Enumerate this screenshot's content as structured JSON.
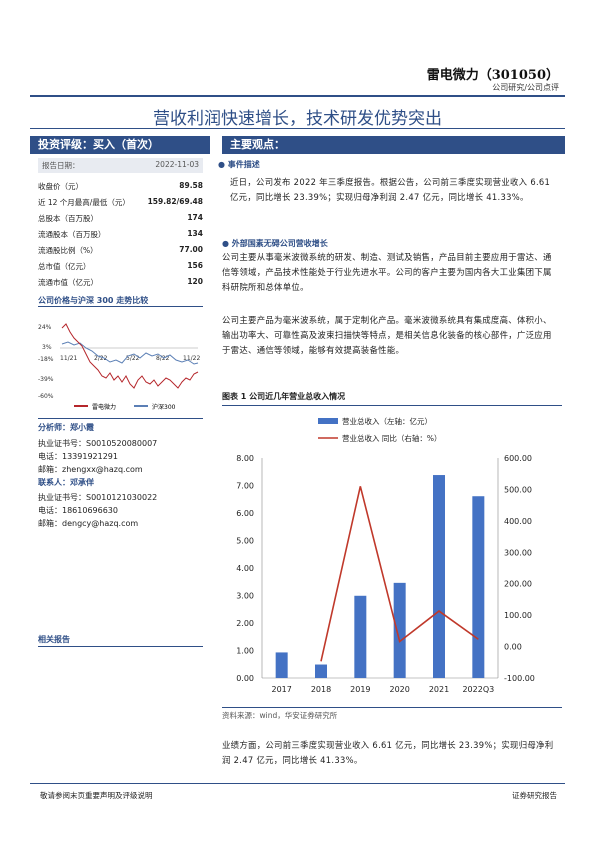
{
  "header": {
    "company": "雷电微力（301050）",
    "category": "公司研究/公司点评"
  },
  "title": "营收利润快速增长，技术研发优势突出",
  "left": {
    "rating_label": "投资评级：买入（首次）",
    "report_date_label": "报告日期：",
    "report_date": "2022-11-03",
    "stats": [
      {
        "label": "收盘价（元）",
        "value": "89.58"
      },
      {
        "label": "近 12 个月最高/最低（元）",
        "value": "159.82/69.48"
      },
      {
        "label": "总股本（百万股）",
        "value": "174"
      },
      {
        "label": "流通股本（百万股）",
        "value": "134"
      },
      {
        "label": "流通股比例（%）",
        "value": "77.00"
      },
      {
        "label": "总市值（亿元）",
        "value": "156"
      },
      {
        "label": "流通市值（亿元）",
        "value": "120"
      }
    ],
    "price_chart_title": "公司价格与沪深 300 走势比较",
    "price_chart": {
      "y_ticks": [
        "24%",
        "3%",
        "-18%",
        "-39%",
        "-60%"
      ],
      "x_ticks": [
        "11/21",
        "2/22",
        "5/22",
        "8/22",
        "11/22"
      ],
      "legend": [
        "雷电微力",
        "沪深300"
      ],
      "colors": [
        "#b5262b",
        "#5b7fb5"
      ]
    },
    "analyst_label": "分析师：",
    "analyst_name": "郑小霞",
    "analyst_cert": "执业证书号：S0010520080007",
    "analyst_phone": "电话：13391921291",
    "analyst_email": "邮箱：zhengxx@hazq.com",
    "contact_label": "联系人：",
    "contact_name": "邓承佯",
    "contact_cert": "执业证书号：S0010121030022",
    "contact_phone": "电话：18610696630",
    "contact_email": "邮箱：dengcy@hazq.com",
    "related": "相关报告"
  },
  "right": {
    "main_label": "主要观点：",
    "event_title": "事件描述",
    "event_text": "近日，公司发布 2022 年三季度报告。根据公告，公司前三季度实现营业收入 6.61 亿元，同比增长 23.39%；实现归母净利润 2.47 亿元，同比增长 41.33%。",
    "sec2_title": "外部国素无碍公司营收增长",
    "sec2_p1": "公司主要从事毫米波微系统的研发、制造、测试及销售，产品目前主要应用于雷达、通信等领域，产品技术性能处于行业先进水平。公司的客户主要为国内各大工业集团下属科研院所和总体单位。",
    "sec2_p2": "公司主要产品为毫米波系统，属于定制化产品。毫米波微系统具有集成度高、体积小、输出功率大、可靠性高及波束扫描快等特点，是相关信息化装备的核心部件，广泛应用于雷达、通信等领域，能够有效提高装备性能。",
    "fig_title": "图表 1 公司近几年营业总收入情况",
    "source": "资料来源：wind，华安证券研究所",
    "bottom_p": "业绩方面，公司前三季度实现营业收入 6.61 亿元，同比增长 23.39%；实现归母净利润 2.47 亿元，同比增长 41.33%。"
  },
  "footer": {
    "left": "敬请参阅末页重要声明及评级说明",
    "right": "证券研究报告"
  },
  "chart_data": {
    "type": "bar",
    "categories": [
      "2017",
      "2018",
      "2019",
      "2020",
      "2021",
      "2022Q3"
    ],
    "series": [
      {
        "name": "营业总收入（左轴：亿元）",
        "type": "bar",
        "values": [
          0.93,
          0.49,
          2.99,
          3.46,
          7.38,
          6.61
        ],
        "color": "#4472c4"
      },
      {
        "name": "营业总收入 同比（右轴：%）",
        "type": "line",
        "values": [
          null,
          -47,
          510,
          16,
          113,
          23.39
        ],
        "color": "#c0392b"
      }
    ],
    "y_left": {
      "ticks": [
        "8.00",
        "7.00",
        "6.00",
        "5.00",
        "4.00",
        "3.00",
        "2.00",
        "1.00",
        "0.00"
      ],
      "range": [
        0,
        8
      ]
    },
    "y_right": {
      "ticks": [
        "600.00",
        "500.00",
        "400.00",
        "300.00",
        "200.00",
        "100.00",
        "0.00",
        "-100.00"
      ],
      "range": [
        -100,
        600
      ]
    },
    "grid": false,
    "legend": "top"
  }
}
